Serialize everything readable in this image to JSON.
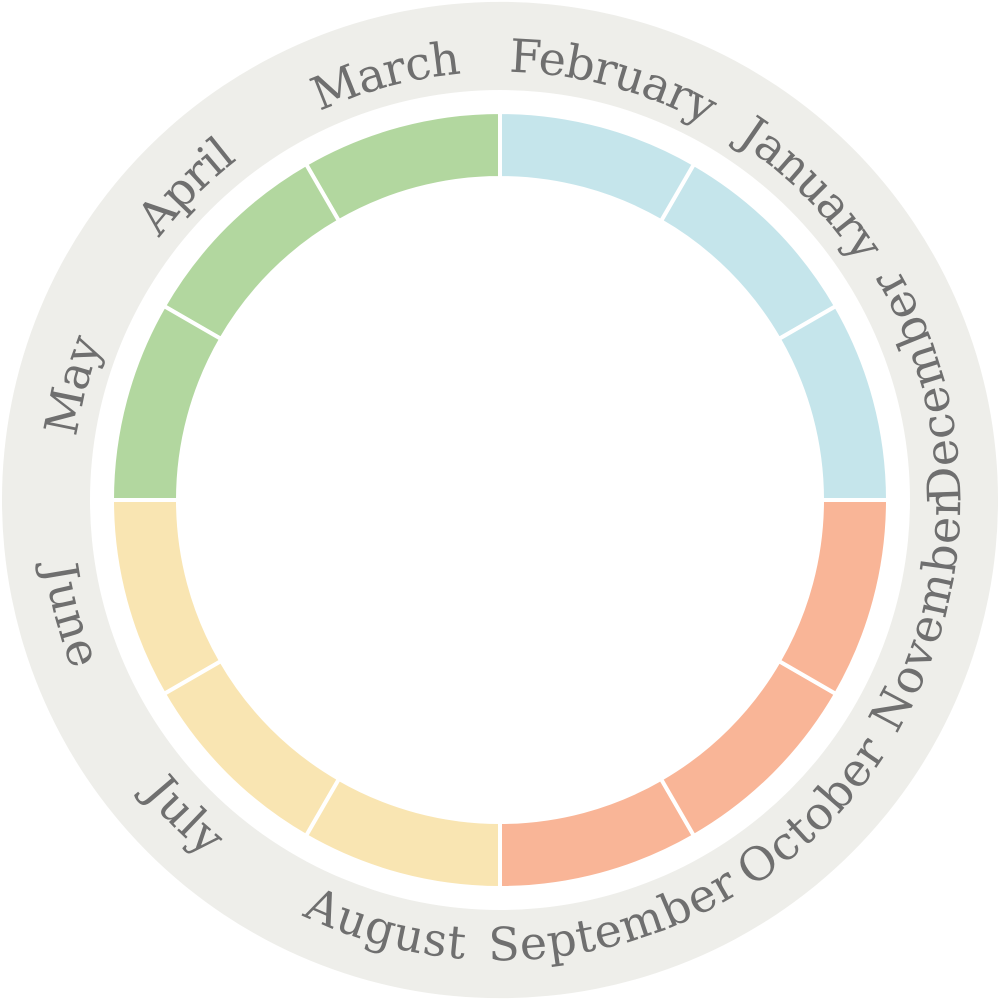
{
  "colors": {
    "outer_ring": "#eeeeea",
    "separator": "#ffffff",
    "label_text": "#6f6f6f",
    "winter": "#c5e5eb",
    "spring": "#b2d79f",
    "summer": "#f9e5b2",
    "autumn": "#f9b597"
  },
  "months": [
    {
      "name": "January",
      "season": "winter"
    },
    {
      "name": "February",
      "season": "winter"
    },
    {
      "name": "March",
      "season": "spring"
    },
    {
      "name": "April",
      "season": "spring"
    },
    {
      "name": "May",
      "season": "spring"
    },
    {
      "name": "June",
      "season": "summer"
    },
    {
      "name": "July",
      "season": "summer"
    },
    {
      "name": "August",
      "season": "summer"
    },
    {
      "name": "September",
      "season": "autumn"
    },
    {
      "name": "October",
      "season": "autumn"
    },
    {
      "name": "November",
      "season": "autumn"
    },
    {
      "name": "December",
      "season": "winter"
    }
  ]
}
